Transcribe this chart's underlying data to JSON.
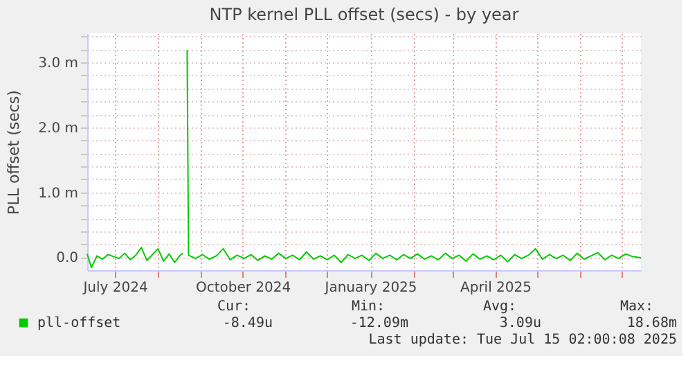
{
  "chart_data": {
    "type": "line",
    "title": "NTP kernel PLL offset (secs) - by year",
    "ylabel": "PLL offset (secs)",
    "x": [
      "2024-06-11",
      "2024-06-14",
      "2024-06-18",
      "2024-06-22",
      "2024-06-26",
      "2024-06-30",
      "2024-07-04",
      "2024-07-08",
      "2024-07-12",
      "2024-07-16",
      "2024-07-20",
      "2024-07-24",
      "2024-07-28",
      "2024-08-01",
      "2024-08-05",
      "2024-08-09",
      "2024-08-13",
      "2024-08-17",
      "2024-08-19",
      "2024-08-21",
      "2024-08-22",
      "2024-08-23",
      "2024-08-28",
      "2024-09-02",
      "2024-09-07",
      "2024-09-12",
      "2024-09-17",
      "2024-09-22",
      "2024-09-27",
      "2024-10-02",
      "2024-10-07",
      "2024-10-12",
      "2024-10-17",
      "2024-10-22",
      "2024-10-27",
      "2024-11-01",
      "2024-11-06",
      "2024-11-11",
      "2024-11-16",
      "2024-11-21",
      "2024-11-26",
      "2024-12-01",
      "2024-12-06",
      "2024-12-11",
      "2024-12-16",
      "2024-12-21",
      "2024-12-26",
      "2024-12-31",
      "2025-01-05",
      "2025-01-10",
      "2025-01-15",
      "2025-01-20",
      "2025-01-25",
      "2025-01-30",
      "2025-02-04",
      "2025-02-09",
      "2025-02-14",
      "2025-02-19",
      "2025-02-24",
      "2025-03-01",
      "2025-03-06",
      "2025-03-11",
      "2025-03-16",
      "2025-03-21",
      "2025-03-26",
      "2025-03-31",
      "2025-04-05",
      "2025-04-10",
      "2025-04-15",
      "2025-04-20",
      "2025-04-25",
      "2025-04-30",
      "2025-05-05",
      "2025-05-10",
      "2025-05-15",
      "2025-05-20",
      "2025-05-25",
      "2025-05-30",
      "2025-06-04",
      "2025-06-09",
      "2025-06-14",
      "2025-06-19",
      "2025-06-24",
      "2025-06-29",
      "2025-07-04",
      "2025-07-09",
      "2025-07-15"
    ],
    "series": [
      {
        "name": "pll-offset",
        "color": "#00cc00",
        "values": [
          0.05,
          -0.16,
          0.02,
          -0.03,
          0.04,
          0.01,
          -0.02,
          0.06,
          -0.04,
          0.03,
          0.15,
          -0.05,
          0.04,
          0.13,
          -0.06,
          0.05,
          -0.08,
          0.03,
          0.06,
          null,
          3.19,
          0.03,
          -0.02,
          0.04,
          -0.03,
          0.02,
          0.13,
          -0.04,
          0.03,
          -0.02,
          0.04,
          -0.05,
          0.02,
          -0.03,
          0.06,
          -0.02,
          0.03,
          -0.04,
          0.08,
          -0.03,
          0.02,
          -0.04,
          0.03,
          -0.08,
          0.04,
          -0.02,
          0.03,
          -0.05,
          0.06,
          -0.02,
          0.03,
          -0.04,
          0.04,
          -0.02,
          0.05,
          -0.03,
          0.02,
          -0.04,
          0.06,
          -0.02,
          0.03,
          -0.06,
          0.05,
          -0.03,
          0.02,
          -0.04,
          0.03,
          -0.07,
          0.04,
          -0.02,
          0.03,
          0.13,
          -0.03,
          0.04,
          -0.02,
          0.03,
          -0.05,
          0.06,
          -0.03,
          0.02,
          0.07,
          -0.04,
          0.03,
          -0.02,
          0.05,
          0.01,
          -0.01
        ]
      }
    ],
    "xlim": [
      "2024-06-11",
      "2025-07-15"
    ],
    "xticks": [
      {
        "value": "2024-07-01",
        "label": "July 2024"
      },
      {
        "value": "2024-08-01",
        "label": null
      },
      {
        "value": "2024-09-01",
        "label": null
      },
      {
        "value": "2024-10-01",
        "label": "October 2024"
      },
      {
        "value": "2024-11-01",
        "label": null
      },
      {
        "value": "2024-12-01",
        "label": null
      },
      {
        "value": "2025-01-01",
        "label": "January 2025"
      },
      {
        "value": "2025-02-01",
        "label": null
      },
      {
        "value": "2025-03-01",
        "label": null
      },
      {
        "value": "2025-04-01",
        "label": "April 2025"
      },
      {
        "value": "2025-05-01",
        "label": null
      },
      {
        "value": "2025-06-01",
        "label": null
      },
      {
        "value": "2025-07-01",
        "label": null
      }
    ],
    "ylim": [
      -0.2,
      3.45
    ],
    "yticks": [
      {
        "value": 0,
        "label": "0.0"
      },
      {
        "value": 0.2,
        "label": null
      },
      {
        "value": 0.4,
        "label": null
      },
      {
        "value": 0.6,
        "label": null
      },
      {
        "value": 0.8,
        "label": null
      },
      {
        "value": 1,
        "label": "1.0 m"
      },
      {
        "value": 1.2,
        "label": null
      },
      {
        "value": 1.4,
        "label": null
      },
      {
        "value": 1.6,
        "label": null
      },
      {
        "value": 1.8,
        "label": null
      },
      {
        "value": 2,
        "label": "2.0 m"
      },
      {
        "value": 2.2,
        "label": null
      },
      {
        "value": 2.4,
        "label": null
      },
      {
        "value": 2.6,
        "label": null
      },
      {
        "value": 2.8,
        "label": null
      },
      {
        "value": 3,
        "label": "3.0 m"
      },
      {
        "value": 3.2,
        "label": null
      },
      {
        "value": 3.4,
        "label": null
      }
    ],
    "grid": true,
    "legend": "bottom",
    "marker": "none",
    "line_style": "solid",
    "annotations": [
      "Cur:",
      "Min:",
      "Avg:",
      "Max:",
      "-8.49u",
      "-12.09m",
      "3.09u",
      "18.68m",
      "Last update: Tue Jul 15 02:00:08 2025"
    ]
  }
}
